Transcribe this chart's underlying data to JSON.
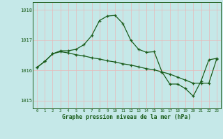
{
  "hours": [
    0,
    1,
    2,
    3,
    4,
    5,
    6,
    7,
    8,
    9,
    10,
    11,
    12,
    13,
    14,
    15,
    16,
    17,
    18,
    19,
    20,
    21,
    22,
    23
  ],
  "line1": [
    1016.1,
    1016.3,
    1016.55,
    1016.65,
    1016.65,
    1016.7,
    1016.85,
    1017.15,
    1017.65,
    1017.8,
    1017.82,
    1017.55,
    1017.0,
    1016.7,
    1016.6,
    1016.62,
    1015.95,
    1015.55,
    1015.55,
    1015.4,
    1015.15,
    1015.65,
    1016.35,
    1016.4
  ],
  "line2": [
    1016.1,
    1016.3,
    1016.55,
    1016.62,
    1016.58,
    1016.52,
    1016.48,
    1016.42,
    1016.38,
    1016.32,
    1016.28,
    1016.22,
    1016.18,
    1016.12,
    1016.06,
    1016.02,
    1015.95,
    1015.88,
    1015.78,
    1015.68,
    1015.58,
    1015.58,
    1015.58,
    1016.38
  ],
  "line_color": "#1a5c1a",
  "bg_color": "#c5e8e8",
  "grid_color": "#e8b8b8",
  "ylim": [
    1014.75,
    1018.25
  ],
  "yticks": [
    1015,
    1016,
    1017,
    1018
  ],
  "xlabel": "Graphe pression niveau de la mer (hPa)",
  "title_color": "#1a5c1a",
  "marker": "+"
}
